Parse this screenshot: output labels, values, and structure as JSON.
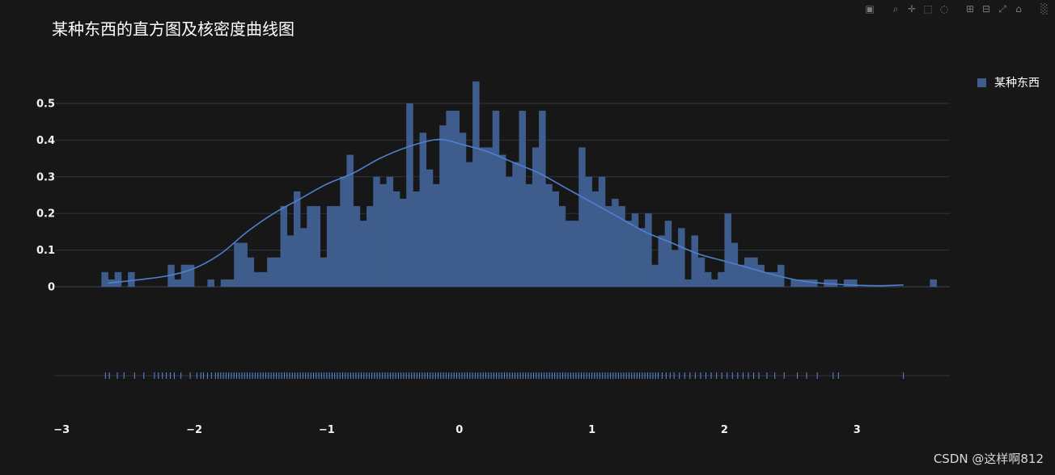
{
  "title": "某种东西的直方图及核密度曲线图",
  "legend": {
    "label": "某种东西",
    "color": "#3e5d8d"
  },
  "watermark": "CSDN @这样啊812",
  "modebar": [
    "camera-icon",
    "zoom-icon",
    "pan-icon",
    "box-select-icon",
    "lasso-icon",
    "zoom-in-icon",
    "zoom-out-icon",
    "autoscale-icon",
    "reset-axes-icon",
    "plotly-logo-icon"
  ],
  "colors": {
    "background": "#171717",
    "bar_fill": "#3e5d8d",
    "kde_line": "#4f7fcf",
    "rug": "#5b8be0",
    "grid": "#2f3440",
    "zero": "#3d4556"
  },
  "chart_data": {
    "type": "bar",
    "subtype": "histogram-with-kde-and-rug",
    "series_name": "某种东西",
    "xlim": [
      -3.05,
      3.7
    ],
    "ylim": [
      0,
      0.6
    ],
    "x_ticks": [
      {
        "value": -3,
        "label": "−3"
      },
      {
        "value": -2,
        "label": "−2"
      },
      {
        "value": -1,
        "label": "−1"
      },
      {
        "value": 0,
        "label": "0"
      },
      {
        "value": 1,
        "label": "1"
      },
      {
        "value": 2,
        "label": "2"
      },
      {
        "value": 3,
        "label": "3"
      }
    ],
    "y_ticks": [
      {
        "value": 0,
        "label": "0"
      },
      {
        "value": 0.1,
        "label": "0.1"
      },
      {
        "value": 0.2,
        "label": "0.2"
      },
      {
        "value": 0.3,
        "label": "0.3"
      },
      {
        "value": 0.4,
        "label": "0.4"
      },
      {
        "value": 0.5,
        "label": "0.5"
      }
    ],
    "bin_start": -2.7,
    "bin_width": 0.05,
    "values": [
      0.04,
      0.02,
      0.04,
      0.0,
      0.04,
      0.0,
      0.0,
      0.0,
      0.0,
      0.0,
      0.06,
      0.02,
      0.06,
      0.06,
      0.0,
      0.0,
      0.02,
      0.0,
      0.02,
      0.02,
      0.12,
      0.12,
      0.08,
      0.04,
      0.04,
      0.08,
      0.08,
      0.22,
      0.14,
      0.26,
      0.16,
      0.22,
      0.22,
      0.08,
      0.22,
      0.22,
      0.3,
      0.36,
      0.22,
      0.18,
      0.22,
      0.3,
      0.28,
      0.3,
      0.26,
      0.24,
      0.5,
      0.26,
      0.42,
      0.32,
      0.28,
      0.44,
      0.48,
      0.48,
      0.42,
      0.34,
      0.56,
      0.38,
      0.38,
      0.48,
      0.36,
      0.3,
      0.34,
      0.48,
      0.28,
      0.38,
      0.48,
      0.28,
      0.26,
      0.22,
      0.18,
      0.18,
      0.38,
      0.3,
      0.26,
      0.3,
      0.22,
      0.24,
      0.22,
      0.18,
      0.2,
      0.16,
      0.2,
      0.06,
      0.14,
      0.18,
      0.1,
      0.16,
      0.02,
      0.14,
      0.08,
      0.04,
      0.02,
      0.04,
      0.2,
      0.12,
      0.06,
      0.08,
      0.08,
      0.06,
      0.04,
      0.04,
      0.06,
      0.0,
      0.02,
      0.02,
      0.02,
      0.02,
      0.0,
      0.02,
      0.02,
      0.0,
      0.02,
      0.02,
      0.0,
      0.0,
      0.0,
      0.0,
      0.0,
      0.0,
      0.0,
      0.0,
      0.0,
      0.0,
      0.0,
      0.02
    ],
    "kde": {
      "x": [
        -2.65,
        -2.4,
        -2.2,
        -2.0,
        -1.8,
        -1.6,
        -1.4,
        -1.2,
        -1.0,
        -0.8,
        -0.6,
        -0.4,
        -0.2,
        -0.1,
        0.0,
        0.2,
        0.4,
        0.6,
        0.8,
        1.0,
        1.2,
        1.4,
        1.6,
        1.8,
        2.0,
        2.2,
        2.4,
        2.6,
        2.8,
        3.0,
        3.2,
        3.35
      ],
      "y": [
        0.01,
        0.02,
        0.03,
        0.05,
        0.09,
        0.15,
        0.2,
        0.24,
        0.28,
        0.31,
        0.35,
        0.38,
        0.4,
        0.4,
        0.39,
        0.37,
        0.34,
        0.31,
        0.27,
        0.23,
        0.19,
        0.15,
        0.12,
        0.09,
        0.07,
        0.05,
        0.03,
        0.015,
        0.008,
        0.004,
        0.003,
        0.005
      ]
    },
    "rug_x": [
      -2.67,
      -2.64,
      -2.58,
      -2.53,
      -2.45,
      -2.38,
      -2.3,
      -2.27,
      -2.24,
      -2.21,
      -2.18,
      -2.15,
      -2.1,
      -2.03,
      -1.98,
      -1.95,
      -1.93,
      -1.9,
      -1.87,
      -1.84,
      -1.82,
      -1.8,
      -1.78,
      -1.76,
      -1.74,
      -1.72,
      -1.7,
      -1.68,
      -1.66,
      -1.64,
      -1.62,
      -1.6,
      -1.58,
      -1.56,
      -1.54,
      -1.52,
      -1.5,
      -1.48,
      -1.46,
      -1.44,
      -1.42,
      -1.4,
      -1.38,
      -1.36,
      -1.34,
      -1.32,
      -1.3,
      -1.28,
      -1.26,
      -1.24,
      -1.22,
      -1.2,
      -1.18,
      -1.16,
      -1.14,
      -1.12,
      -1.1,
      -1.08,
      -1.06,
      -1.04,
      -1.02,
      -1.0,
      -0.98,
      -0.96,
      -0.94,
      -0.92,
      -0.9,
      -0.88,
      -0.86,
      -0.84,
      -0.82,
      -0.8,
      -0.78,
      -0.76,
      -0.74,
      -0.72,
      -0.7,
      -0.68,
      -0.66,
      -0.64,
      -0.62,
      -0.6,
      -0.58,
      -0.56,
      -0.54,
      -0.52,
      -0.5,
      -0.48,
      -0.46,
      -0.44,
      -0.42,
      -0.4,
      -0.38,
      -0.36,
      -0.34,
      -0.32,
      -0.3,
      -0.28,
      -0.26,
      -0.24,
      -0.22,
      -0.2,
      -0.18,
      -0.16,
      -0.14,
      -0.12,
      -0.1,
      -0.08,
      -0.06,
      -0.04,
      -0.02,
      0.0,
      0.02,
      0.04,
      0.06,
      0.08,
      0.1,
      0.12,
      0.14,
      0.16,
      0.18,
      0.2,
      0.22,
      0.24,
      0.26,
      0.28,
      0.3,
      0.32,
      0.34,
      0.36,
      0.38,
      0.4,
      0.42,
      0.44,
      0.46,
      0.48,
      0.5,
      0.52,
      0.54,
      0.56,
      0.58,
      0.6,
      0.62,
      0.64,
      0.66,
      0.68,
      0.7,
      0.72,
      0.74,
      0.76,
      0.78,
      0.8,
      0.82,
      0.84,
      0.86,
      0.88,
      0.9,
      0.92,
      0.94,
      0.96,
      0.98,
      1.0,
      1.02,
      1.04,
      1.06,
      1.08,
      1.1,
      1.12,
      1.14,
      1.16,
      1.18,
      1.2,
      1.22,
      1.24,
      1.26,
      1.28,
      1.3,
      1.32,
      1.34,
      1.36,
      1.38,
      1.4,
      1.42,
      1.44,
      1.46,
      1.48,
      1.5,
      1.53,
      1.56,
      1.59,
      1.62,
      1.66,
      1.7,
      1.74,
      1.78,
      1.82,
      1.86,
      1.9,
      1.94,
      1.98,
      2.02,
      2.06,
      2.1,
      2.14,
      2.18,
      2.22,
      2.26,
      2.32,
      2.38,
      2.45,
      2.55,
      2.62,
      2.7,
      2.82,
      2.86,
      3.35
    ]
  }
}
